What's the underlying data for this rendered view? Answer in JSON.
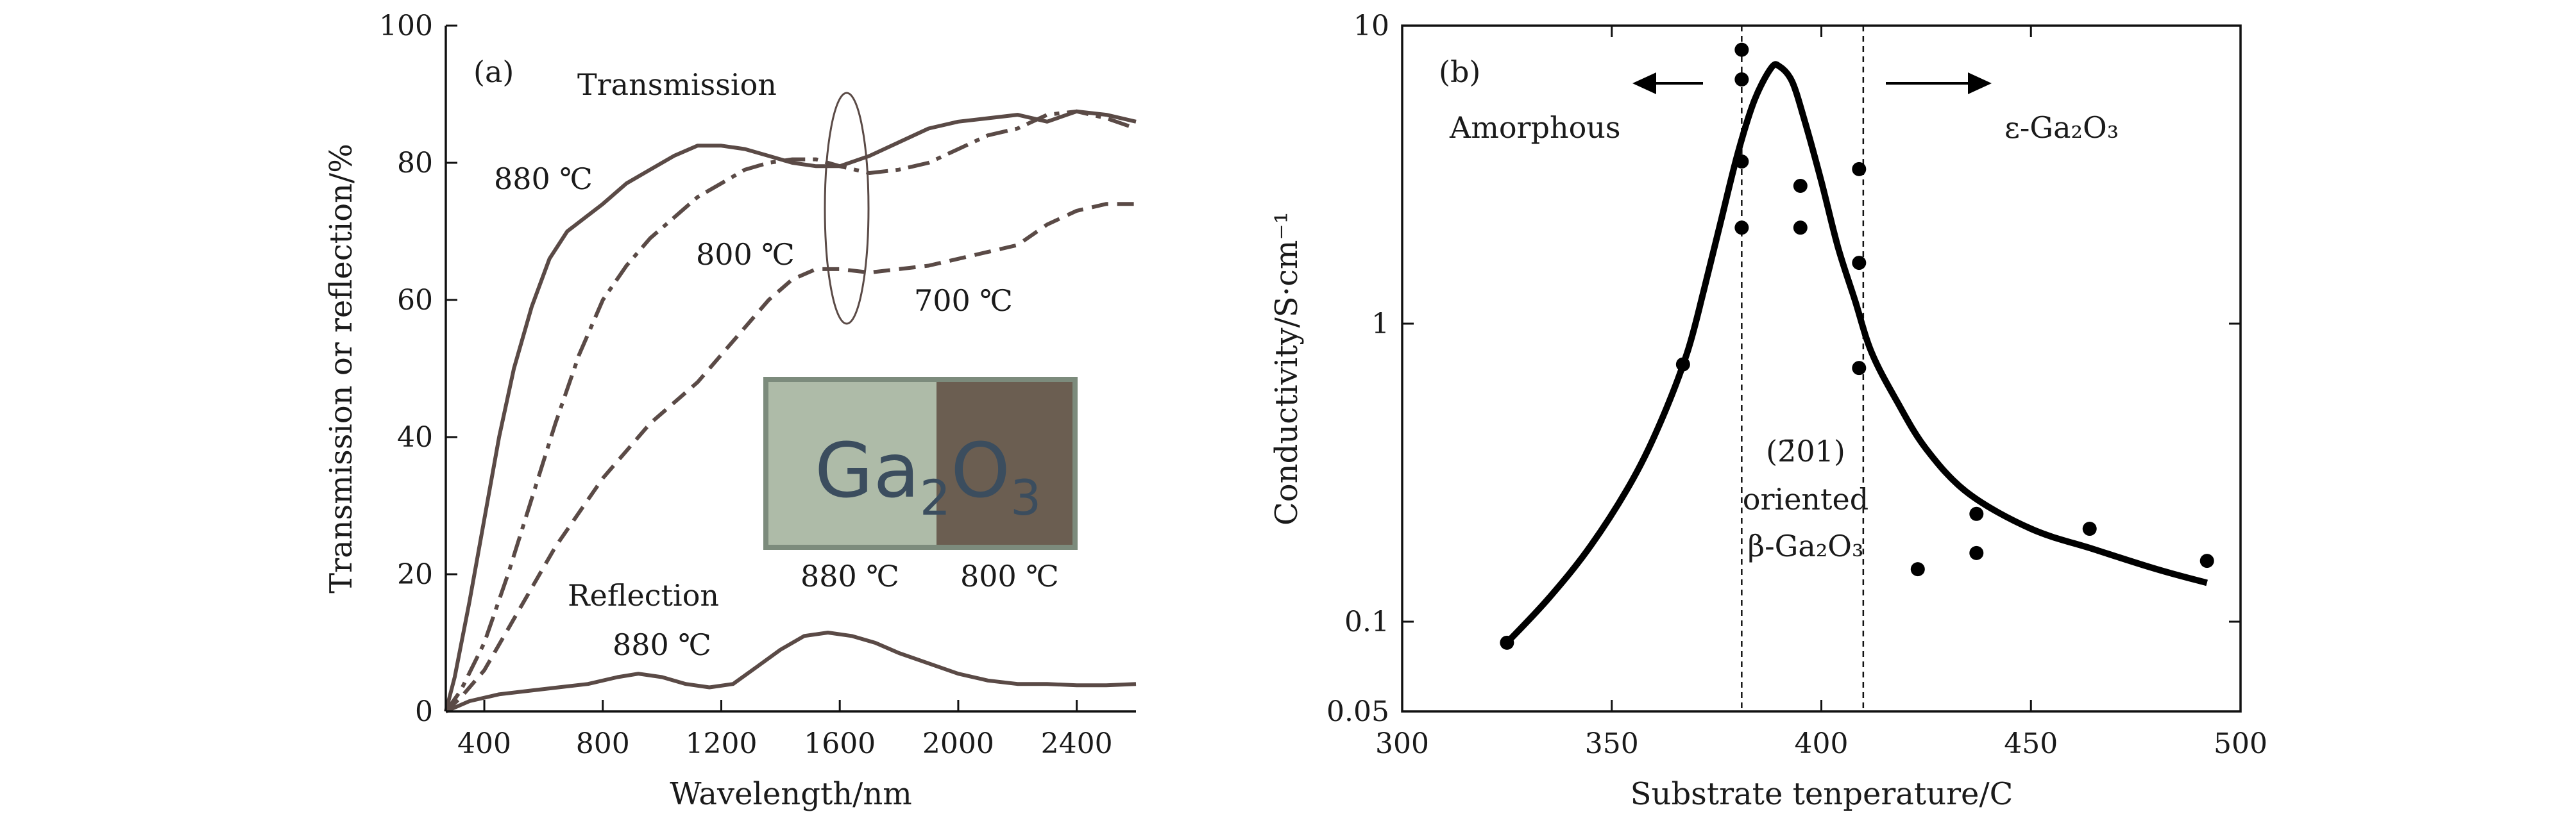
{
  "chart_data": [
    {
      "panel": "(a)",
      "type": "line",
      "xlabel": "Wavelength/nm",
      "ylabel": "Transmission or reflection/%",
      "xlim": [
        270,
        2600
      ],
      "ylim": [
        0,
        100
      ],
      "xticks": [
        400,
        800,
        1200,
        1600,
        2000,
        2400
      ],
      "yticks": [
        0,
        20,
        40,
        60,
        80,
        100
      ],
      "series": [
        {
          "name": "880 ℃",
          "group": "Transmission",
          "dash": "solid",
          "x": [
            270,
            300,
            350,
            400,
            450,
            500,
            560,
            620,
            680,
            740,
            800,
            880,
            960,
            1040,
            1120,
            1200,
            1280,
            1360,
            1440,
            1520,
            1600,
            1700,
            1800,
            1900,
            2000,
            2100,
            2200,
            2300,
            2400,
            2500,
            2600
          ],
          "y": [
            0,
            5,
            16,
            28,
            40,
            50,
            59,
            66,
            70,
            72,
            74,
            77,
            79,
            81,
            82.5,
            82.5,
            82,
            81,
            80,
            79.5,
            79.5,
            81,
            83,
            85,
            86,
            86.5,
            87,
            86,
            87.5,
            87,
            86
          ]
        },
        {
          "name": "800 ℃",
          "group": "Transmission",
          "dash": "dashdot",
          "x": [
            270,
            320,
            400,
            480,
            560,
            640,
            720,
            800,
            880,
            960,
            1040,
            1120,
            1200,
            1280,
            1360,
            1440,
            1520,
            1600,
            1700,
            1800,
            1900,
            2000,
            2100,
            2200,
            2300,
            2400,
            2500,
            2600
          ],
          "y": [
            0,
            3,
            10,
            20,
            31,
            42,
            52,
            60,
            65,
            69,
            72,
            75,
            77,
            79,
            80,
            80.5,
            80.5,
            79.5,
            78.5,
            79,
            80,
            82,
            84,
            85,
            87,
            87.5,
            86.5,
            85
          ]
        },
        {
          "name": "700 ℃",
          "group": "Transmission",
          "dash": "dashed",
          "x": [
            270,
            320,
            400,
            480,
            560,
            640,
            720,
            800,
            880,
            960,
            1040,
            1120,
            1200,
            1280,
            1360,
            1440,
            1520,
            1600,
            1700,
            1800,
            1900,
            2000,
            2100,
            2200,
            2300,
            2400,
            2500,
            2600
          ],
          "y": [
            0,
            2,
            6,
            12,
            18,
            24,
            29,
            34,
            38,
            42,
            45,
            48,
            52,
            56,
            60,
            63,
            64.5,
            64.5,
            64,
            64.5,
            65,
            66,
            67,
            68,
            71,
            73,
            74,
            74
          ]
        },
        {
          "name": "880 ℃",
          "group": "Reflection",
          "dash": "solid",
          "x": [
            270,
            350,
            450,
            550,
            650,
            750,
            850,
            920,
            1000,
            1080,
            1160,
            1240,
            1320,
            1400,
            1480,
            1560,
            1640,
            1720,
            1800,
            1900,
            2000,
            2100,
            2200,
            2300,
            2400,
            2500,
            2600
          ],
          "y": [
            0,
            1.5,
            2.5,
            3,
            3.5,
            4,
            5,
            5.5,
            5,
            4,
            3.5,
            4,
            6.5,
            9,
            11,
            11.5,
            11,
            10,
            8.5,
            7,
            5.5,
            4.5,
            4,
            4,
            3.8,
            3.8,
            4
          ]
        }
      ],
      "annotations": {
        "panel_label": "(a)",
        "transmission_label": "Transmission",
        "t880_label": "880 ℃",
        "t800_label": "800 ℃",
        "t700_label": "700 ℃",
        "reflection_label": "Reflection",
        "r880_label": "880 ℃",
        "inset_text_main": "Ga",
        "inset_text_sub1": "2",
        "inset_text_o": "O",
        "inset_text_sub2": "3",
        "inset_label_left": "880 ℃",
        "inset_label_right": "800 ℃"
      },
      "colors": {
        "curves": "#5a4a46",
        "inset_left": "#aebba8",
        "inset_right": "#6b5e51",
        "inset_frame": "#7c8b7c"
      }
    },
    {
      "panel": "(b)",
      "type": "scatter",
      "xlabel": "Substrate tenperature/C",
      "ylabel": "Conductivity/S·cm⁻¹",
      "xscale": "linear",
      "yscale": "log",
      "xlim": [
        300,
        500
      ],
      "ylim": [
        0.05,
        10
      ],
      "xticks": [
        300,
        350,
        400,
        450,
        500
      ],
      "yticks": [
        0.05,
        0.1,
        1,
        10
      ],
      "ytick_labels": [
        "0.05",
        "0.1",
        "1",
        "10"
      ],
      "points": {
        "x": [
          325,
          367,
          381,
          381,
          381,
          381,
          395,
          395,
          409,
          409,
          409,
          423,
          437,
          437,
          464,
          492
        ],
        "y": [
          0.085,
          0.73,
          8.3,
          6.6,
          3.5,
          2.1,
          2.9,
          2.1,
          3.3,
          1.6,
          0.71,
          0.15,
          0.23,
          0.17,
          0.205,
          0.16
        ]
      },
      "fit_curve": {
        "x": [
          325,
          335,
          345,
          355,
          362,
          368,
          372,
          376,
          380,
          384,
          388,
          390,
          393,
          396,
          400,
          404,
          408,
          412,
          418,
          425,
          435,
          450,
          465,
          480,
          492
        ],
        "y": [
          0.085,
          0.12,
          0.18,
          0.3,
          0.48,
          0.8,
          1.3,
          2.2,
          3.7,
          5.6,
          7.2,
          7.3,
          6.5,
          4.8,
          3.0,
          1.8,
          1.2,
          0.8,
          0.55,
          0.38,
          0.27,
          0.205,
          0.175,
          0.15,
          0.135
        ]
      },
      "vertical_lines_x": [
        381,
        410
      ],
      "annotations": {
        "panel_label": "(b)",
        "left_phase": "Amorphous",
        "right_phase": "ε-Ga₂O₃",
        "center_orientation": "(2̄01)",
        "center_word": "oriented",
        "center_phase": "β-Ga₂O₃"
      }
    }
  ]
}
